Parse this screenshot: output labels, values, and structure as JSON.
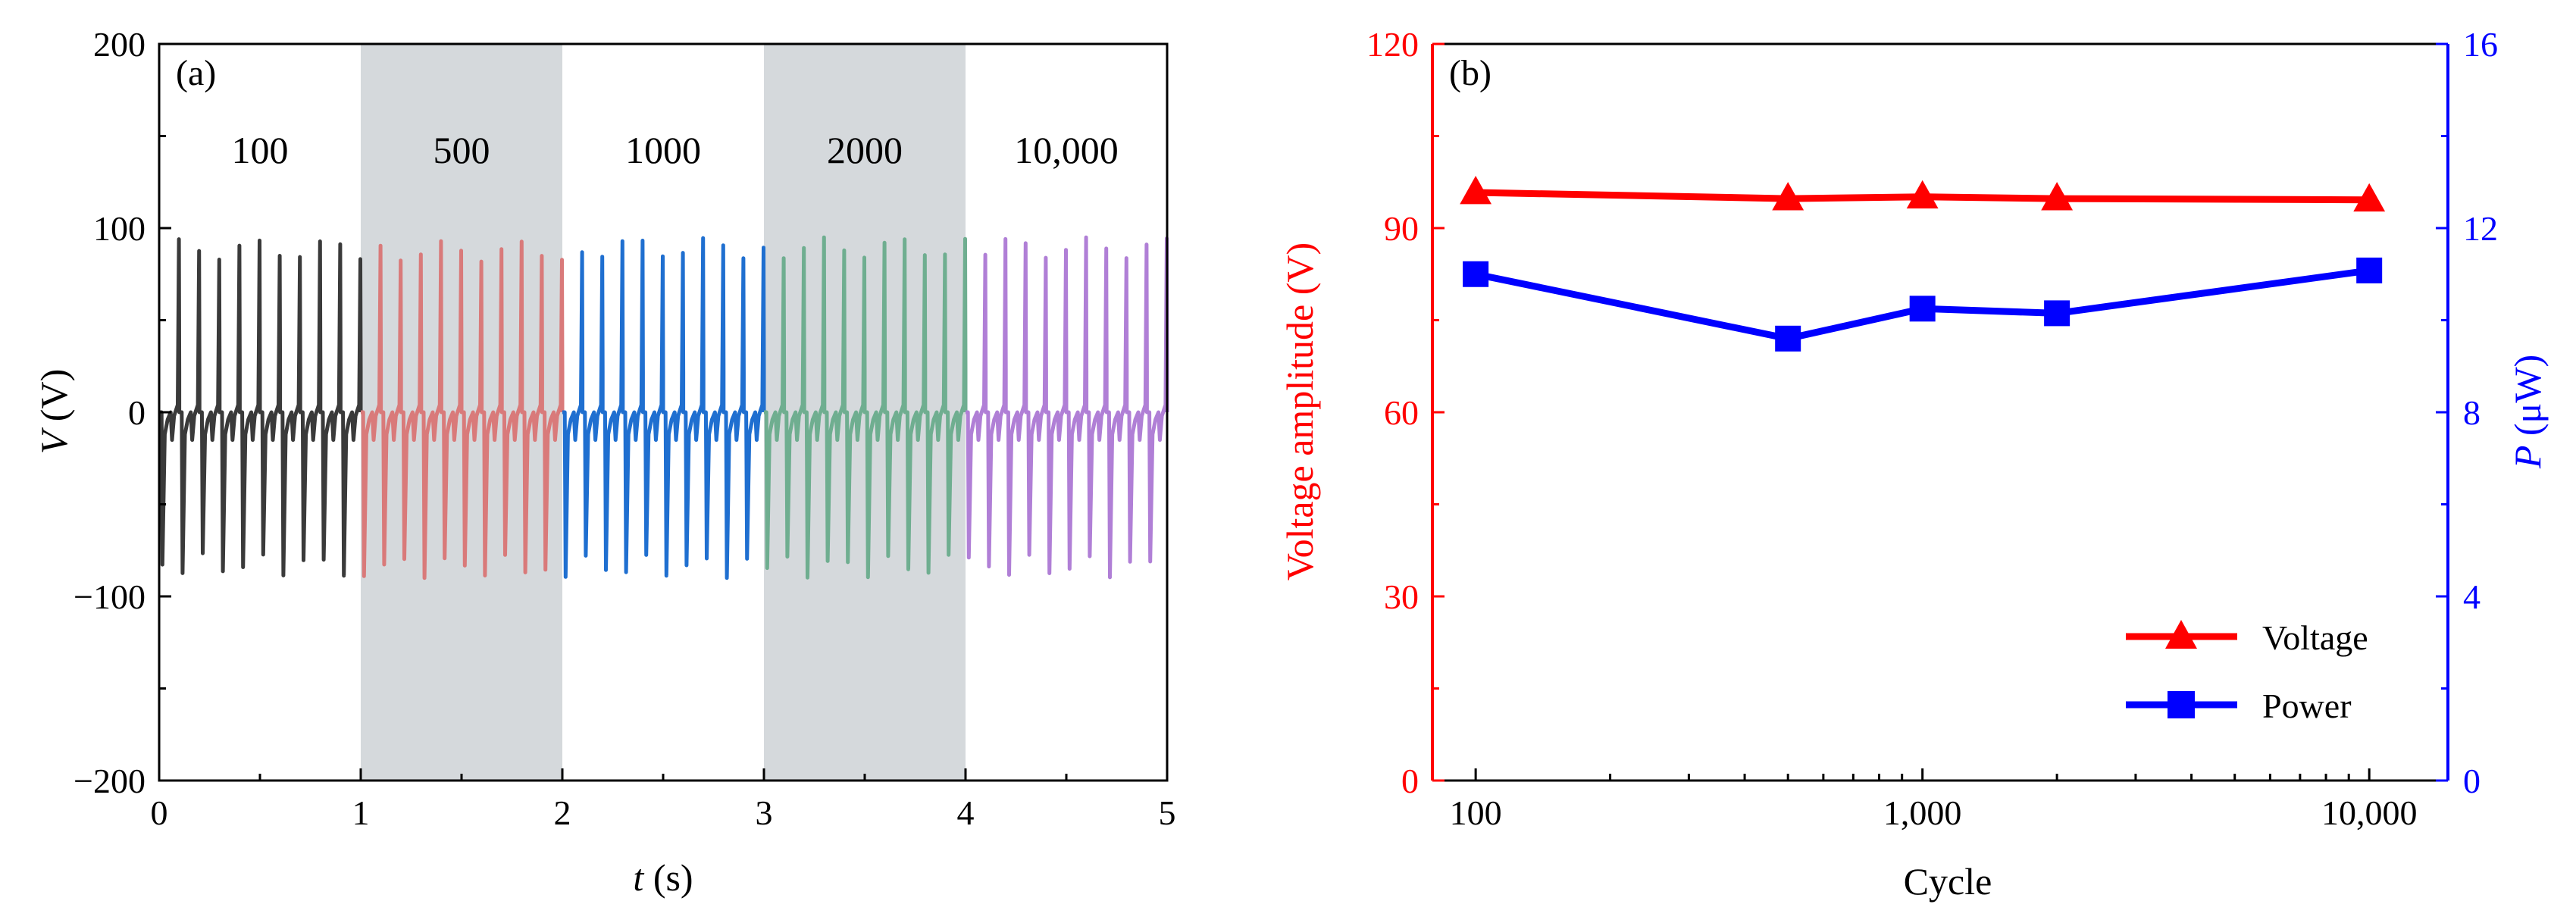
{
  "colors": {
    "axis": "#000000",
    "shade": "#d5d9dc",
    "voltage": "#ff0000",
    "power": "#0000ff",
    "seg_colors": [
      "#3a3a3a",
      "#d97a7a",
      "#1f6fd0",
      "#6fae90",
      "#b07fd6"
    ]
  },
  "chart_data": [
    {
      "type": "line",
      "panel": "(a)",
      "title": "",
      "xlabel_italic": "t",
      "xlabel_rest": " (s)",
      "ylabel_italic": "V",
      "ylabel_rest": " (V)",
      "xlim": [
        0,
        5
      ],
      "ylim": [
        -200,
        200
      ],
      "xticks": [
        0,
        1,
        2,
        3,
        4,
        5
      ],
      "yticks": [
        -200,
        -100,
        0,
        100,
        200
      ],
      "xtick_labels": [
        "0",
        "1",
        "2",
        "3",
        "4",
        "5"
      ],
      "ytick_labels": [
        "−200",
        "−100",
        "0",
        "100",
        "200"
      ],
      "shaded_ranges": [
        [
          1,
          2
        ],
        [
          3,
          4
        ]
      ],
      "segments": [
        {
          "label": "100",
          "t_range": [
            0,
            1
          ],
          "pulses": 10,
          "peak": 94,
          "trough": -89
        },
        {
          "label": "500",
          "t_range": [
            1,
            2
          ],
          "pulses": 10,
          "peak": 93,
          "trough": -90
        },
        {
          "label": "1000",
          "t_range": [
            2,
            3
          ],
          "pulses": 10,
          "peak": 95,
          "trough": -90
        },
        {
          "label": "2000",
          "t_range": [
            3,
            4
          ],
          "pulses": 10,
          "peak": 95,
          "trough": -90
        },
        {
          "label": "10,000",
          "t_range": [
            4,
            5
          ],
          "pulses": 10,
          "peak": 95,
          "trough": -90
        }
      ]
    },
    {
      "type": "line",
      "panel": "(b)",
      "title": "",
      "xlabel": "Cycle",
      "ylabel_left": "Voltage amplitude (V)",
      "ylabel_right_italic": "P",
      "ylabel_right_rest": " (μW)",
      "xscale": "log",
      "xlim": [
        80,
        15000
      ],
      "ylim_left": [
        0,
        120
      ],
      "ylim_right": [
        0,
        16
      ],
      "xticks": [
        100,
        1000,
        10000
      ],
      "xtick_labels": [
        "100",
        "1,000",
        "10,000"
      ],
      "yticks_left": [
        0,
        30,
        60,
        90,
        120
      ],
      "ytick_labels_left": [
        "0",
        "30",
        "60",
        "90",
        "120"
      ],
      "yticks_right": [
        0,
        4,
        8,
        12,
        16
      ],
      "ytick_labels_right": [
        "0",
        "4",
        "8",
        "12",
        "16"
      ],
      "x": [
        100,
        500,
        1000,
        2000,
        10000
      ],
      "series": [
        {
          "name": "Voltage",
          "axis": "left",
          "marker": "triangle",
          "values": [
            95.8,
            94.8,
            95.1,
            94.8,
            94.6
          ]
        },
        {
          "name": "Power",
          "axis": "right",
          "marker": "square",
          "values": [
            11.0,
            9.6,
            10.25,
            10.15,
            11.08
          ]
        }
      ],
      "legend": "bottom-right"
    }
  ]
}
